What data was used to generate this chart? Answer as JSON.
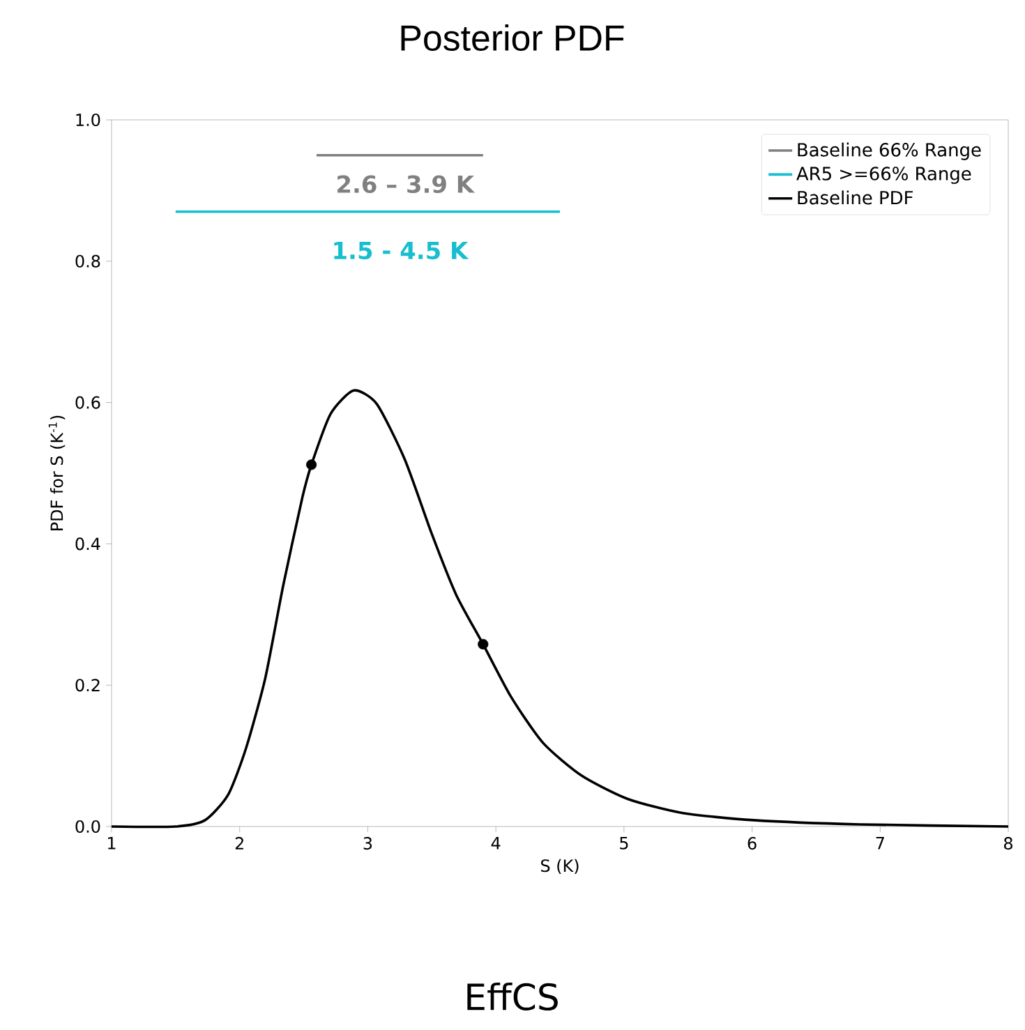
{
  "chart_data": {
    "type": "line",
    "title": "Posterior PDF",
    "xlabel": "S (K)",
    "ylabel": "PDF for S (K$^{-1}$)",
    "xlim": [
      1,
      8
    ],
    "ylim": [
      0,
      1.0
    ],
    "xticks": [
      1,
      2,
      3,
      4,
      5,
      6,
      7,
      8
    ],
    "yticks": [
      {
        "value": 0,
        "label": "0.0"
      },
      {
        "value": 0.2,
        "label": "0.2"
      },
      {
        "value": 0.4,
        "label": "0.4"
      },
      {
        "value": 0.6,
        "label": "0.6"
      },
      {
        "value": 0.8,
        "label": "0.8"
      },
      {
        "value": 1.0,
        "label": "1.0"
      }
    ],
    "legend": "top right",
    "grid": false,
    "line_style": "solid",
    "series": [
      {
        "name": "Baseline 66% Range",
        "color": "#808080",
        "x": [
          2.6,
          3.9
        ],
        "values": [
          0.95,
          0.95
        ]
      },
      {
        "name": "AR5 >=66% Range",
        "color": "#17becf",
        "x": [
          1.5,
          4.5
        ],
        "values": [
          0.87,
          0.87
        ]
      },
      {
        "name": "Baseline PDF",
        "color": "#000000",
        "x": [
          1,
          1.5,
          1.73,
          1.91,
          2.05,
          2.2,
          2.34,
          2.49,
          2.56,
          2.71,
          2.89,
          3.07,
          3.29,
          3.5,
          3.69,
          3.9,
          4.12,
          4.37,
          4.67,
          5.03,
          5.46,
          6.01,
          6.84,
          8
        ],
        "values": [
          0,
          0,
          0.009,
          0.045,
          0.111,
          0.21,
          0.341,
          0.466,
          0.512,
          0.584,
          0.617,
          0.598,
          0.519,
          0.414,
          0.328,
          0.258,
          0.183,
          0.118,
          0.072,
          0.039,
          0.019,
          0.009,
          0.003,
          0
        ]
      },
      {
        "color": "#000000",
        "type": "scatter",
        "x": [
          2.56,
          3.9
        ],
        "values": [
          0.512,
          0.258
        ]
      }
    ],
    "annotations": [
      "2.6 – 3.9 K",
      "1.5 - 4.5 K",
      "EffCS"
    ]
  }
}
